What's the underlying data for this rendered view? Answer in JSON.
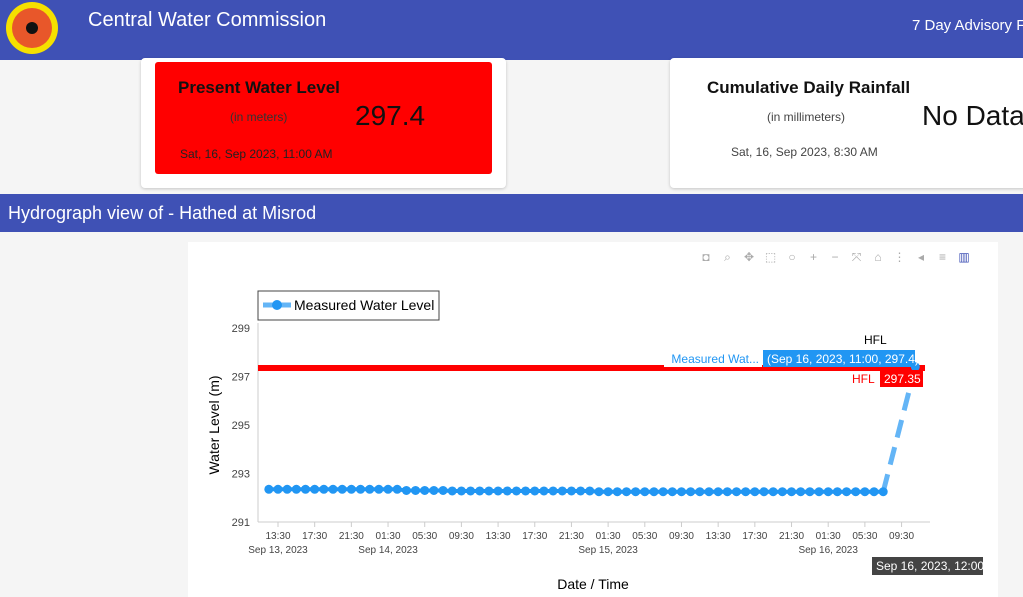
{
  "header": {
    "title": "Central Water Commission",
    "advisory": "7 Day Advisory F"
  },
  "level_card": {
    "title": "Present Water Level",
    "unit": "(in meters)",
    "value": "297.4",
    "timestamp": "Sat, 16, Sep 2023, 11:00 AM",
    "color": "#ff0000"
  },
  "rain_card": {
    "title": "Cumulative Daily Rainfall",
    "unit": "(in millimeters)",
    "value": "No Data",
    "timestamp": "Sat, 16, Sep 2023, 8:30 AM"
  },
  "section_title": "Hydrograph view of - Hathed at Misrod",
  "toolbar": [
    "camera-icon",
    "zoom-icon",
    "pan-icon",
    "box-select-icon",
    "lasso-icon",
    "zoom-in-icon",
    "zoom-out-icon",
    "autoscale-icon",
    "home-icon",
    "spike-icon",
    "hover-closest-icon",
    "hover-compare-icon",
    "plotly-logo-icon"
  ],
  "chart_data": {
    "type": "line",
    "legend": "Measured Water Level",
    "legend_position": "top-left",
    "xlabel": "Date / Time",
    "ylabel": "Water Level (m)",
    "ylim": [
      291,
      299
    ],
    "yticks": [
      291,
      293,
      295,
      297,
      299
    ],
    "xticks": [
      "13:30",
      "17:30",
      "21:30",
      "01:30",
      "05:30",
      "09:30",
      "13:30",
      "17:30",
      "21:30",
      "01:30",
      "05:30",
      "09:30",
      "13:30",
      "17:30",
      "21:30",
      "01:30",
      "05:30",
      "09:30"
    ],
    "xtick_dates": {
      "0": "Sep 13, 2023",
      "3": "Sep 14, 2023",
      "9": "Sep 15, 2023",
      "15": "Sep 16, 2023"
    },
    "series_start_hours": -1,
    "step_hours": 1,
    "values": [
      292.35,
      292.35,
      292.35,
      292.35,
      292.35,
      292.35,
      292.35,
      292.35,
      292.35,
      292.35,
      292.35,
      292.35,
      292.35,
      292.35,
      292.35,
      292.3,
      292.3,
      292.3,
      292.3,
      292.3,
      292.28,
      292.28,
      292.28,
      292.28,
      292.28,
      292.28,
      292.28,
      292.28,
      292.28,
      292.28,
      292.28,
      292.28,
      292.28,
      292.28,
      292.28,
      292.28,
      292.25,
      292.25,
      292.25,
      292.25,
      292.25,
      292.25,
      292.25,
      292.25,
      292.25,
      292.25,
      292.25,
      292.25,
      292.25,
      292.25,
      292.25,
      292.25,
      292.25,
      292.25,
      292.25,
      292.25,
      292.25,
      292.25,
      292.25,
      292.25,
      292.25,
      292.25,
      292.25,
      292.25,
      292.25,
      292.25,
      292.25,
      292.25
    ],
    "last_point": {
      "hours": 69.5,
      "value": 297.4
    },
    "hfl": {
      "label": "HFL",
      "value": 297.35,
      "tag": "297.35",
      "color": "#ff0000"
    },
    "hover_label": "Measured Wat...",
    "hover_value": "(Sep 16, 2023, 11:00, 297.4)",
    "x_hover": "Sep 16, 2023, 12:00",
    "series_color": "#2196f3"
  }
}
